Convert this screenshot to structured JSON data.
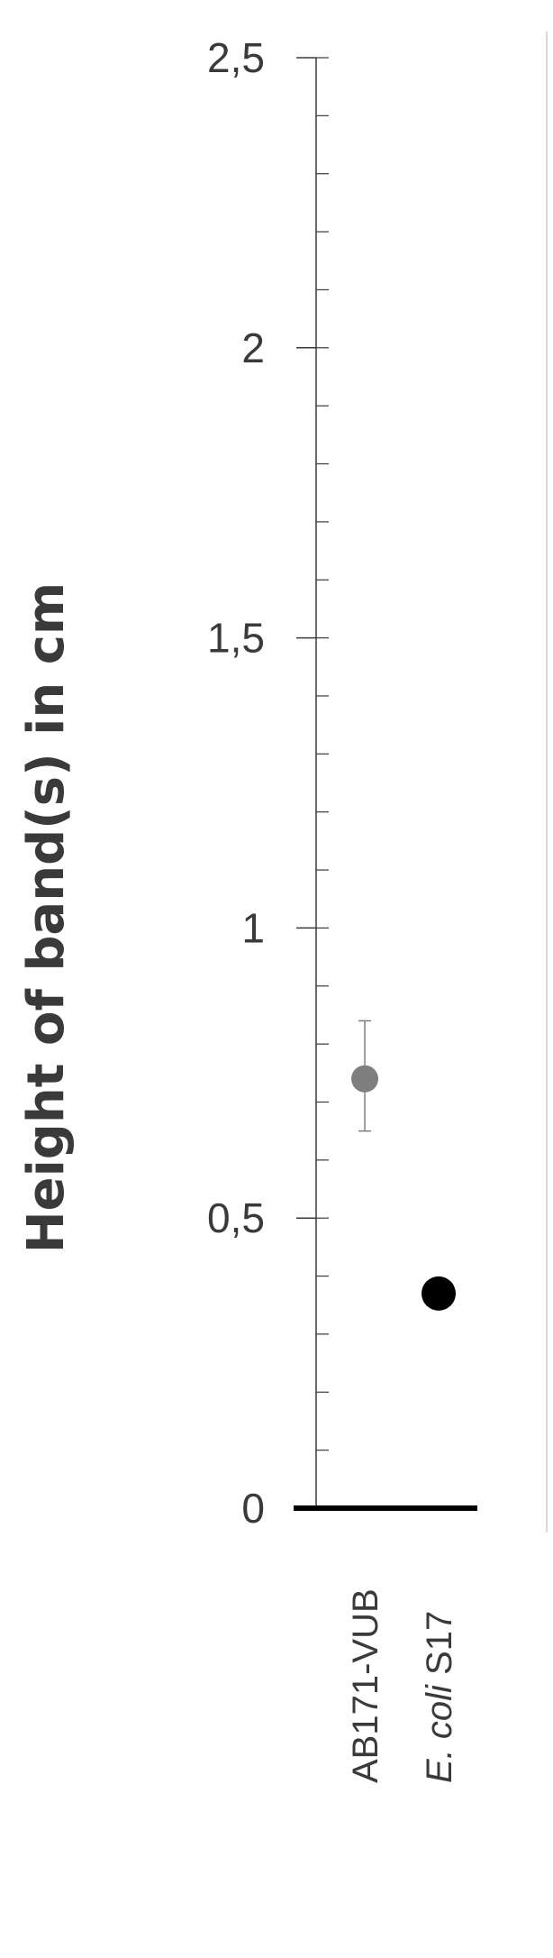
{
  "chart_data": {
    "type": "scatter",
    "title": "",
    "xlabel": "",
    "ylabel": "Height of band(s) in cm",
    "ylim": [
      0,
      2.5
    ],
    "yticks": [
      {
        "value": 0,
        "label": "0"
      },
      {
        "value": 0.5,
        "label": "0,5"
      },
      {
        "value": 1,
        "label": "1"
      },
      {
        "value": 1.5,
        "label": "1,5"
      },
      {
        "value": 2,
        "label": "2"
      },
      {
        "value": 2.5,
        "label": "2,5"
      }
    ],
    "minor_tick_step": 0.1,
    "grid": false,
    "categories": [
      {
        "label": "AB171-VUB",
        "italic_part": "",
        "plain_part": "AB171-VUB"
      },
      {
        "label": "E. coli S17",
        "italic_part": "E. coli",
        "plain_part": " S17"
      }
    ],
    "points": [
      {
        "category": "AB171-VUB",
        "y": 0.74,
        "error_low": 0.65,
        "error_high": 0.84,
        "color": "#7f7f7f"
      },
      {
        "category": "E. coli S17",
        "y": 0.37,
        "error_low": 0.35,
        "error_high": 0.39,
        "color": "#000000"
      }
    ],
    "colors": {
      "text": "#3a3a3a",
      "axis": "#3a3a3a",
      "baseline": "#000000",
      "frame": "#d9d9d9"
    }
  }
}
